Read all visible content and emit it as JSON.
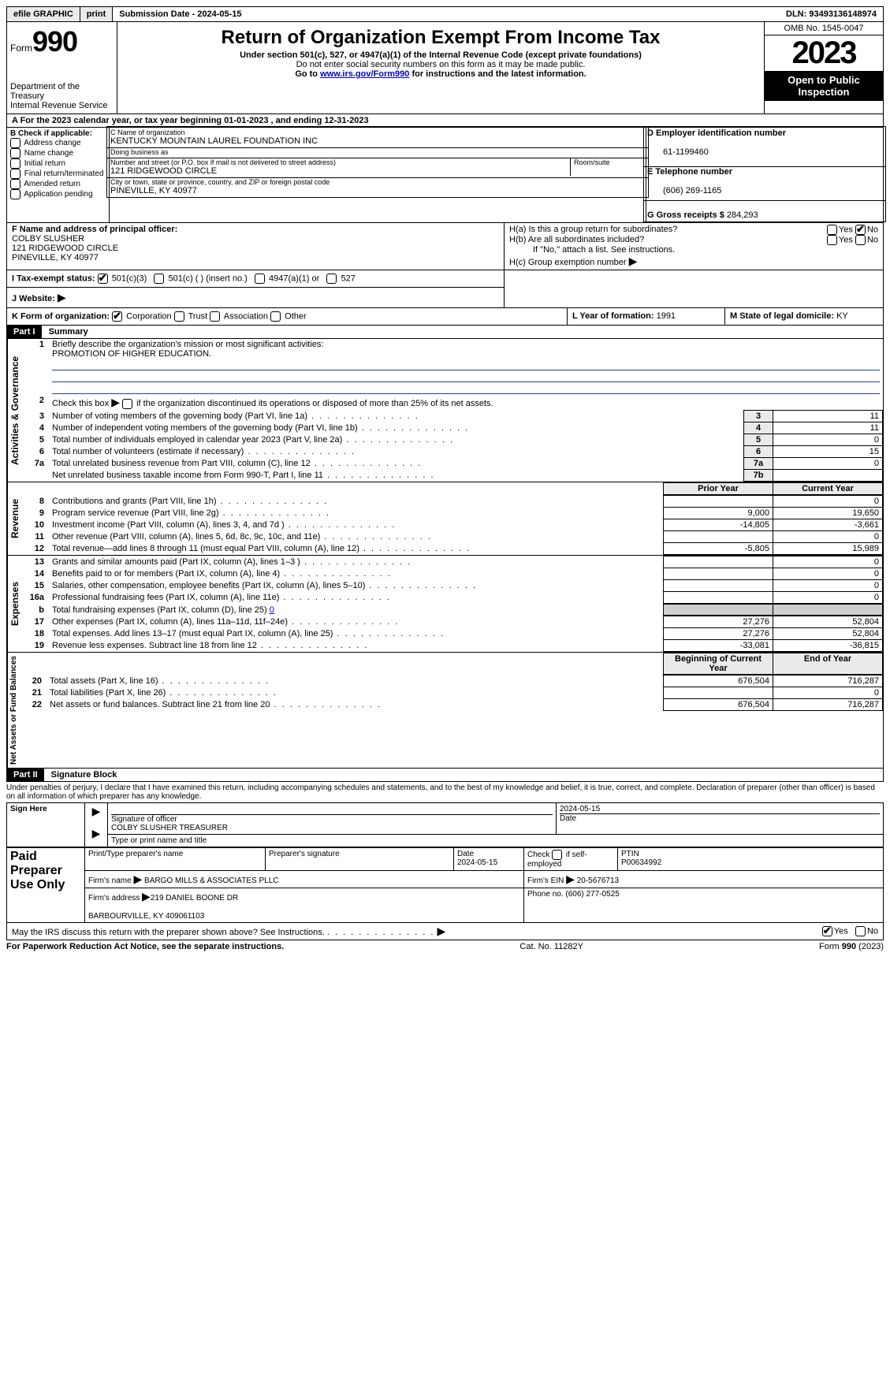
{
  "topbar": {
    "efile": "efile GRAPHIC",
    "print": "print",
    "submission": "Submission Date - 2024-05-15",
    "dln": "DLN: 93493136148974"
  },
  "header": {
    "form_label": "Form",
    "form_number": "990",
    "title": "Return of Organization Exempt From Income Tax",
    "subtitle1": "Under section 501(c), 527, or 4947(a)(1) of the Internal Revenue Code (except private foundations)",
    "subtitle2": "Do not enter social security numbers on this form as it may be made public.",
    "subtitle3_pre": "Go to ",
    "subtitle3_link": "www.irs.gov/Form990",
    "subtitle3_post": " for instructions and the latest information.",
    "dept": "Department of the Treasury\nInternal Revenue Service",
    "omb": "OMB No. 1545-0047",
    "year": "2023",
    "open": "Open to Public Inspection"
  },
  "line_a": "A For the 2023 calendar year, or tax year beginning 01-01-2023   , and ending 12-31-2023",
  "section_b": {
    "label": "B Check if applicable:",
    "items": [
      "Address change",
      "Name change",
      "Initial return",
      "Final return/terminated",
      "Amended return",
      "Application pending"
    ]
  },
  "section_c": {
    "name_label": "C Name of organization",
    "name": "KENTUCKY MOUNTAIN LAUREL FOUNDATION INC",
    "dba_label": "Doing business as",
    "dba": "",
    "street_label": "Number and street (or P.O. box if mail is not delivered to street address)",
    "room_label": "Room/suite",
    "street": "121 RIDGEWOOD CIRCLE",
    "city_label": "City or town, state or province, country, and ZIP or foreign postal code",
    "city": "PINEVILLE, KY  40977"
  },
  "section_d": {
    "label": "D Employer identification number",
    "value": "61-1199460"
  },
  "section_e": {
    "label": "E Telephone number",
    "value": "(606) 269-1165"
  },
  "section_g": {
    "label": "G Gross receipts $",
    "value": "284,293"
  },
  "section_f": {
    "label": "F  Name and address of principal officer:",
    "name": "COLBY SLUSHER",
    "addr1": "121 RIDGEWOOD CIRCLE",
    "addr2": "PINEVILLE, KY  40977"
  },
  "section_h": {
    "ha": "H(a)  Is this a group return for subordinates?",
    "hb": "H(b)  Are all subordinates included?",
    "hb_note": "If \"No,\" attach a list. See instructions.",
    "hc": "H(c)  Group exemption number ",
    "yes": "Yes",
    "no": "No"
  },
  "line_i": {
    "label": "I   Tax-exempt status:",
    "opts": [
      "501(c)(3)",
      "501(c) (  ) (insert no.)",
      "4947(a)(1) or",
      "527"
    ]
  },
  "line_j": {
    "label": "J   Website:",
    "value": ""
  },
  "line_k": {
    "label": "K Form of organization:",
    "opts": [
      "Corporation",
      "Trust",
      "Association",
      "Other"
    ]
  },
  "line_l": {
    "label": "L Year of formation:",
    "value": "1991"
  },
  "line_m": {
    "label": "M State of legal domicile:",
    "value": "KY"
  },
  "part1": {
    "header": "Part I",
    "title": "Summary"
  },
  "summary": {
    "l1_label": "Briefly describe the organization's mission or most significant activities:",
    "l1_text": "PROMOTION OF HIGHER EDUCATION.",
    "l2": "Check this box       if the organization discontinued its operations or disposed of more than 25% of its net assets.",
    "vert1": "Activities & Governance",
    "vert2": "Revenue",
    "vert3": "Expenses",
    "vert4": "Net Assets or Fund Balances",
    "rows_gov": [
      {
        "n": "3",
        "t": "Number of voting members of the governing body (Part VI, line 1a)",
        "b": "3",
        "v": "11"
      },
      {
        "n": "4",
        "t": "Number of independent voting members of the governing body (Part VI, line 1b)",
        "b": "4",
        "v": "11"
      },
      {
        "n": "5",
        "t": "Total number of individuals employed in calendar year 2023 (Part V, line 2a)",
        "b": "5",
        "v": "0"
      },
      {
        "n": "6",
        "t": "Total number of volunteers (estimate if necessary)",
        "b": "6",
        "v": "15"
      },
      {
        "n": "7a",
        "t": "Total unrelated business revenue from Part VIII, column (C), line 12",
        "b": "7a",
        "v": "0"
      },
      {
        "n": "",
        "t": "Net unrelated business taxable income from Form 990-T, Part I, line 11",
        "b": "7b",
        "v": ""
      }
    ],
    "col_prior": "Prior Year",
    "col_current": "Current Year",
    "col_begin": "Beginning of Current Year",
    "col_end": "End of Year",
    "rows_rev": [
      {
        "n": "8",
        "t": "Contributions and grants (Part VIII, line 1h)",
        "p": "",
        "c": "0"
      },
      {
        "n": "9",
        "t": "Program service revenue (Part VIII, line 2g)",
        "p": "9,000",
        "c": "19,650"
      },
      {
        "n": "10",
        "t": "Investment income (Part VIII, column (A), lines 3, 4, and 7d )",
        "p": "-14,805",
        "c": "-3,661"
      },
      {
        "n": "11",
        "t": "Other revenue (Part VIII, column (A), lines 5, 6d, 8c, 9c, 10c, and 11e)",
        "p": "",
        "c": "0"
      },
      {
        "n": "12",
        "t": "Total revenue—add lines 8 through 11 (must equal Part VIII, column (A), line 12)",
        "p": "-5,805",
        "c": "15,989"
      }
    ],
    "rows_exp": [
      {
        "n": "13",
        "t": "Grants and similar amounts paid (Part IX, column (A), lines 1–3 )",
        "p": "",
        "c": "0"
      },
      {
        "n": "14",
        "t": "Benefits paid to or for members (Part IX, column (A), line 4)",
        "p": "",
        "c": "0"
      },
      {
        "n": "15",
        "t": "Salaries, other compensation, employee benefits (Part IX, column (A), lines 5–10)",
        "p": "",
        "c": "0"
      },
      {
        "n": "16a",
        "t": "Professional fundraising fees (Part IX, column (A), line 11e)",
        "p": "",
        "c": "0"
      }
    ],
    "l16b_pre": "Total fundraising expenses (Part IX, column (D), line 25) ",
    "l16b_val": "0",
    "rows_exp2": [
      {
        "n": "17",
        "t": "Other expenses (Part IX, column (A), lines 11a–11d, 11f–24e)",
        "p": "27,276",
        "c": "52,804"
      },
      {
        "n": "18",
        "t": "Total expenses. Add lines 13–17 (must equal Part IX, column (A), line 25)",
        "p": "27,276",
        "c": "52,804"
      },
      {
        "n": "19",
        "t": "Revenue less expenses. Subtract line 18 from line 12",
        "p": "-33,081",
        "c": "-36,815"
      }
    ],
    "rows_net": [
      {
        "n": "20",
        "t": "Total assets (Part X, line 16)",
        "p": "676,504",
        "c": "716,287"
      },
      {
        "n": "21",
        "t": "Total liabilities (Part X, line 26)",
        "p": "",
        "c": "0"
      },
      {
        "n": "22",
        "t": "Net assets or fund balances. Subtract line 21 from line 20",
        "p": "676,504",
        "c": "716,287"
      }
    ]
  },
  "part2": {
    "header": "Part II",
    "title": "Signature Block"
  },
  "perjury": "Under penalties of perjury, I declare that I have examined this return, including accompanying schedules and statements, and to the best of my knowledge and belief, it is true, correct, and complete. Declaration of preparer (other than officer) is based on all information of which preparer has any knowledge.",
  "sign": {
    "here": "Sign Here",
    "sig_label": "Signature of officer",
    "officer": "COLBY SLUSHER  TREASURER",
    "name_label": "Type or print name and title",
    "date_label": "Date",
    "date": "2024-05-15"
  },
  "paid": {
    "label": "Paid Preparer Use Only",
    "r1": {
      "a": "Print/Type preparer's name",
      "b": "Preparer's signature",
      "c": "Date\n2024-05-15",
      "d": "Check        if self-employed",
      "e": "PTIN\nP00634992"
    },
    "r2": {
      "a": "Firm's name     ",
      "b": "BARGO MILLS & ASSOCIATES PLLC",
      "c": "Firm's EIN ",
      "d": "20-5676713"
    },
    "r3": {
      "a": "Firm's address ",
      "b": "219 DANIEL BOONE DR\n\nBARBOURVILLE, KY  409061103",
      "c": "Phone no. ",
      "d": "(606) 277-0525"
    }
  },
  "discuss": {
    "q": "May the IRS discuss this return with the preparer shown above? See Instructions.",
    "yes": "Yes",
    "no": "No"
  },
  "footer": {
    "left": "For Paperwork Reduction Act Notice, see the separate instructions.",
    "mid": "Cat. No. 11282Y",
    "right_pre": "Form ",
    "right_b": "990",
    "right_post": " (2023)"
  }
}
